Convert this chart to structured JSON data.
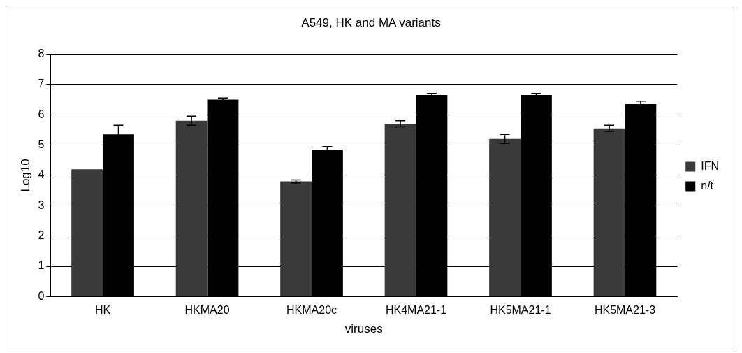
{
  "chart_data": {
    "type": "bar",
    "title": "A549, HK and MA variants",
    "xlabel": "viruses",
    "ylabel": "Log10",
    "categories": [
      "HK",
      "HKMA20",
      "HKMA20c",
      "HK4MA21-1",
      "HK5MA21-1",
      "HK5MA21-3"
    ],
    "series": [
      {
        "name": "IFN",
        "color": "#3a3a3a",
        "values": [
          4.2,
          5.8,
          3.8,
          5.7,
          5.2,
          5.55
        ],
        "errors": [
          null,
          0.15,
          0.05,
          0.1,
          0.15,
          0.1
        ]
      },
      {
        "name": "n/t",
        "color": "#000000",
        "values": [
          5.35,
          6.5,
          4.85,
          6.65,
          6.65,
          6.35
        ],
        "errors": [
          0.3,
          0.05,
          0.1,
          0.05,
          0.05,
          0.1
        ]
      }
    ],
    "ylim": [
      0,
      8
    ],
    "yticks": [
      0,
      1,
      2,
      3,
      4,
      5,
      6,
      7,
      8
    ],
    "grid": "y",
    "legend": "right"
  }
}
